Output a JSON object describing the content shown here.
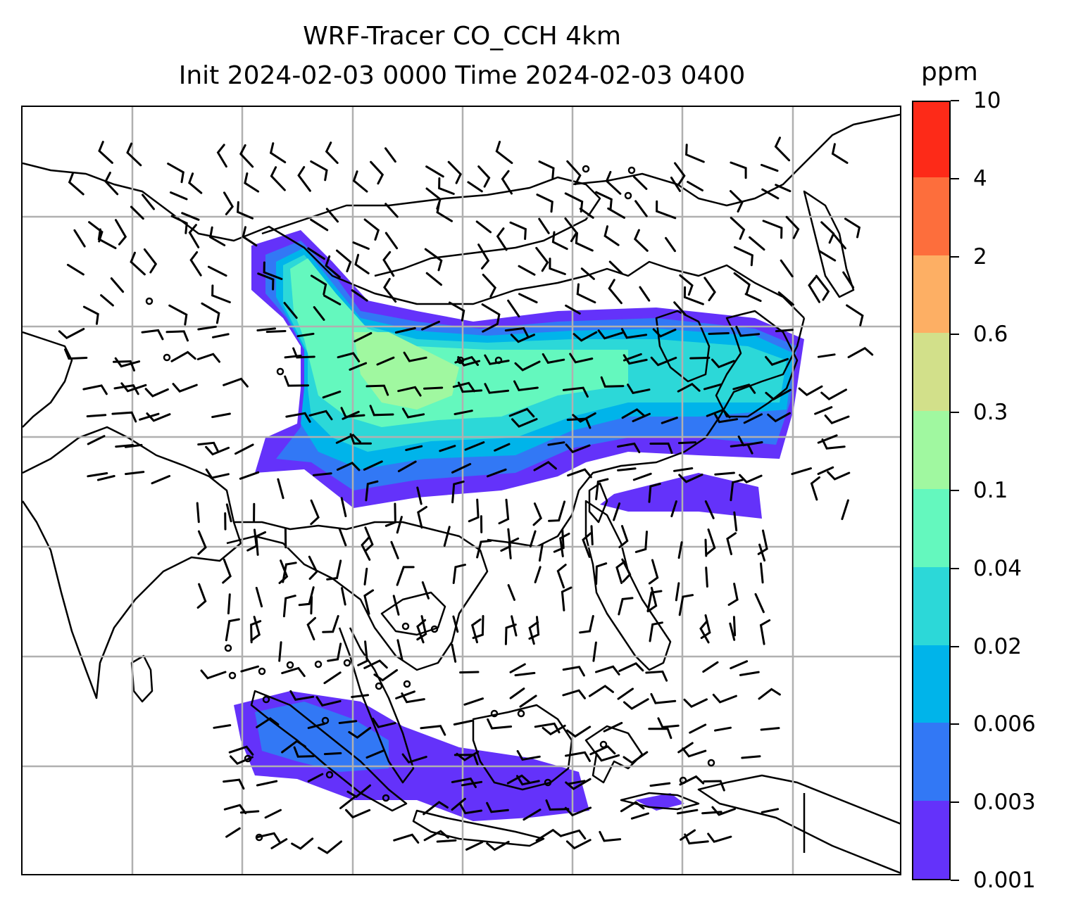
{
  "title": {
    "line1": "WRF-Tracer CO_CCH 4km",
    "line2": "Init 2024-02-03 0000 Time 2024-02-03 0400"
  },
  "colorbar": {
    "unit": "ppm",
    "levels": [
      "0.001",
      "0.003",
      "0.006",
      "0.02",
      "0.04",
      "0.1",
      "0.3",
      "0.6",
      "2",
      "4",
      "10"
    ],
    "colors": [
      "#6432fa",
      "#3278f5",
      "#00b4ea",
      "#2cd8d8",
      "#64f8be",
      "#a0f8a0",
      "#d2e08a",
      "#fdaf64",
      "#fd6e3c",
      "#fd2a18"
    ]
  },
  "map": {
    "gridlines": true,
    "overlay": "wind barbs",
    "coastline_color": "#000000"
  }
}
